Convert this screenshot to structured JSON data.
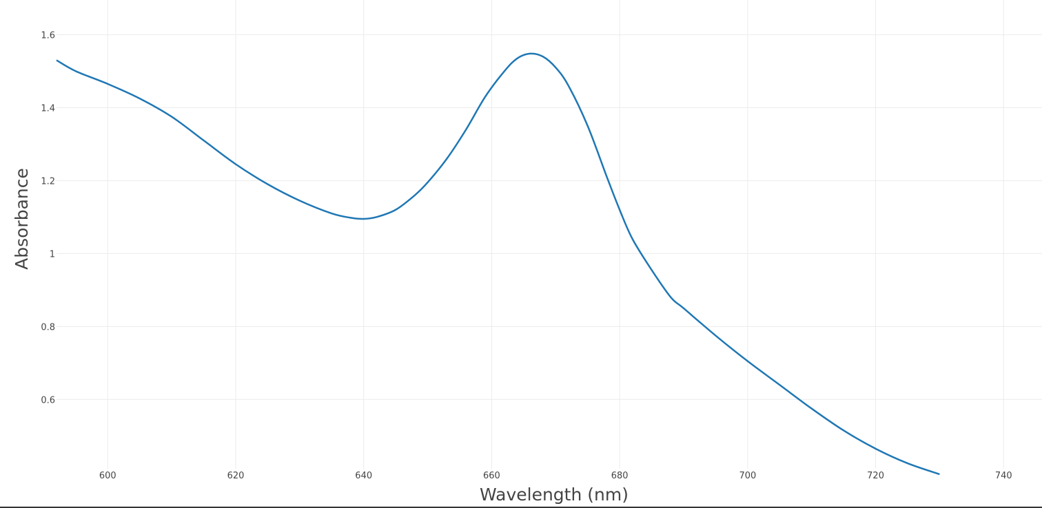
{
  "chart_data": {
    "type": "line",
    "title": "",
    "xlabel": "Wavelength (nm)",
    "ylabel": "Absorbance",
    "xlim": [
      592,
      746
    ],
    "ylim": [
      0.41,
      1.695
    ],
    "grid": true,
    "legend": "none",
    "x_ticks": [
      600,
      620,
      640,
      660,
      680,
      700,
      720,
      740
    ],
    "y_ticks": [
      0.6,
      0.8,
      1,
      1.2,
      1.4,
      1.6
    ],
    "y_tick_labels": [
      "0.6",
      "0.8",
      "1",
      "1.2",
      "1.4",
      "1.6"
    ],
    "series": [
      {
        "color": "#1f77b4",
        "x": [
          592,
          595,
          600,
          605,
          610,
          615,
          620,
          625,
          630,
          635,
          638,
          640,
          642,
          645,
          648,
          650,
          653,
          656,
          659,
          662,
          664,
          666,
          668,
          670,
          672,
          675,
          678,
          680,
          682,
          685,
          688,
          690,
          695,
          700,
          705,
          710,
          715,
          720,
          725,
          730
        ],
        "y": [
          1.53,
          1.5,
          1.465,
          1.425,
          1.375,
          1.31,
          1.245,
          1.19,
          1.145,
          1.11,
          1.098,
          1.095,
          1.1,
          1.12,
          1.16,
          1.195,
          1.26,
          1.34,
          1.43,
          1.5,
          1.535,
          1.548,
          1.54,
          1.51,
          1.46,
          1.35,
          1.21,
          1.12,
          1.04,
          0.955,
          0.88,
          0.85,
          0.775,
          0.705,
          0.64,
          0.575,
          0.515,
          0.465,
          0.425,
          0.395
        ]
      }
    ]
  }
}
